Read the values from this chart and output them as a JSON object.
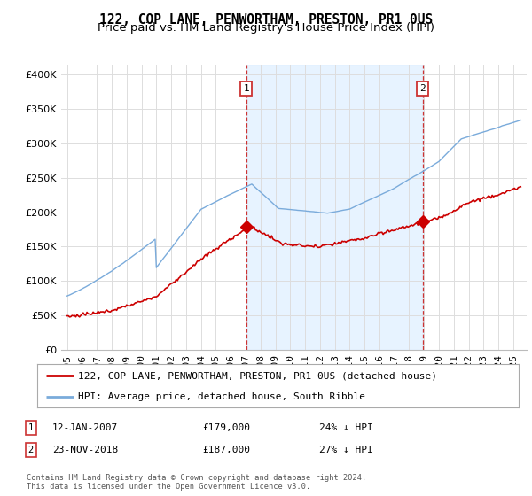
{
  "title": "122, COP LANE, PENWORTHAM, PRESTON, PR1 0US",
  "subtitle": "Price paid vs. HM Land Registry's House Price Index (HPI)",
  "yticks": [
    0,
    50000,
    100000,
    150000,
    200000,
    250000,
    300000,
    350000,
    400000
  ],
  "ylim": [
    0,
    415000
  ],
  "sale1_date": "12-JAN-2007",
  "sale1_price": 179000,
  "sale1_note": "24% ↓ HPI",
  "sale2_date": "23-NOV-2018",
  "sale2_price": 187000,
  "sale2_note": "27% ↓ HPI",
  "sale1_year": 2007.04,
  "sale2_year": 2018.9,
  "hpi_color": "#7aabdb",
  "hpi_shade_color": "#ddeeff",
  "price_color": "#cc0000",
  "marker_color": "#cc0000",
  "vline_color": "#cc3333",
  "legend_label1": "122, COP LANE, PENWORTHAM, PRESTON, PR1 0US (detached house)",
  "legend_label2": "HPI: Average price, detached house, South Ribble",
  "footnote": "Contains HM Land Registry data © Crown copyright and database right 2024.\nThis data is licensed under the Open Government Licence v3.0.",
  "background_color": "#ffffff",
  "grid_color": "#dddddd",
  "title_fontsize": 10.5,
  "subtitle_fontsize": 9.5,
  "tick_fontsize": 8,
  "legend_fontsize": 8,
  "annotation_fontsize": 8
}
